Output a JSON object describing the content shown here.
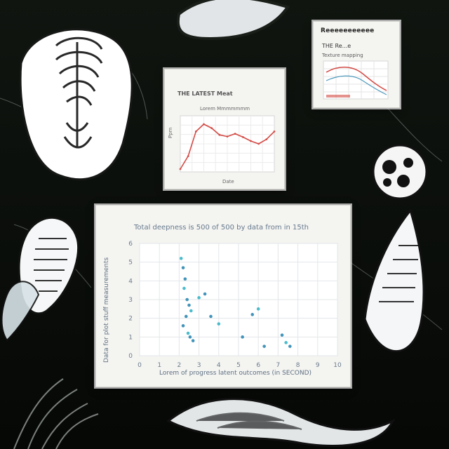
{
  "collage": {
    "colors": {
      "background": "#0d0f0d",
      "paper": "#f4f4f1",
      "sketch": "#e9ecef",
      "plant_dark": "#1a2a1a",
      "chart_line_red": "#d34a45",
      "scatter_blue": "#2f88b2",
      "scatter_cyan": "#37b5c6"
    },
    "icons": [
      "spine-skeleton-icon",
      "seed-pod-icon",
      "fern-frond-icon",
      "sea-creature-icon",
      "leaf-petal-icon",
      "circle-dots-icon",
      "plant-stems-icon"
    ]
  },
  "card_top_right": {
    "title": "Reeeeeeeeeee",
    "subtitle": "THE Re...e",
    "note": "Texture mapping"
  },
  "card_middle": {
    "title": "THE LATEST Meat",
    "subtitle": "Lorem Mmmmmmm",
    "x_label": "Date",
    "y_label": "Ppm"
  },
  "card_bottom": {
    "title": "Total deepness is 500 of 500 by data from in 15th",
    "x_label": "Lorem of progress   latent outcomes (in SECOND)",
    "y_label": "Data for plot stuff measurements"
  },
  "chart_data": [
    {
      "type": "line",
      "title": "THE LATEST Meat",
      "xlabel": "Date",
      "ylabel": "Ppm",
      "grid": true,
      "series": [
        {
          "x": [
            0,
            1,
            2,
            3,
            4,
            5,
            6,
            7,
            8,
            9,
            10,
            11,
            12
          ],
          "values": [
            5,
            28,
            72,
            85,
            78,
            66,
            63,
            68,
            62,
            55,
            50,
            58,
            72
          ]
        }
      ]
    },
    {
      "type": "scatter",
      "title": "Total deepness is 500 of 500 by data from in 15th",
      "xlabel": "Lorem of progress   latent outcomes (in SECOND)",
      "ylabel": "Data for plot stuff measurements",
      "xlim": [
        0,
        10
      ],
      "ylim": [
        0,
        6
      ],
      "x_ticks": [
        "0",
        "1",
        "2",
        "3",
        "4",
        "5",
        "6",
        "7",
        "8",
        "9",
        "10"
      ],
      "y_ticks": [
        "0",
        "1",
        "2",
        "3",
        "4",
        "5",
        "6"
      ],
      "grid": true,
      "series": [
        {
          "x": [
            2.1,
            2.2,
            2.3,
            2.25,
            2.4,
            2.5,
            2.6,
            2.35,
            2.2,
            2.45,
            2.55,
            2.7,
            3.0,
            3.3,
            3.6,
            4.0,
            5.2,
            5.7,
            6.0,
            6.3,
            7.2,
            7.4,
            7.6
          ],
          "values": [
            5.2,
            4.7,
            4.1,
            3.6,
            3.0,
            2.7,
            2.4,
            2.1,
            1.6,
            1.2,
            1.0,
            0.8,
            3.1,
            3.3,
            2.1,
            1.7,
            1.0,
            2.2,
            2.5,
            0.5,
            1.1,
            0.7,
            0.5
          ]
        }
      ]
    }
  ]
}
